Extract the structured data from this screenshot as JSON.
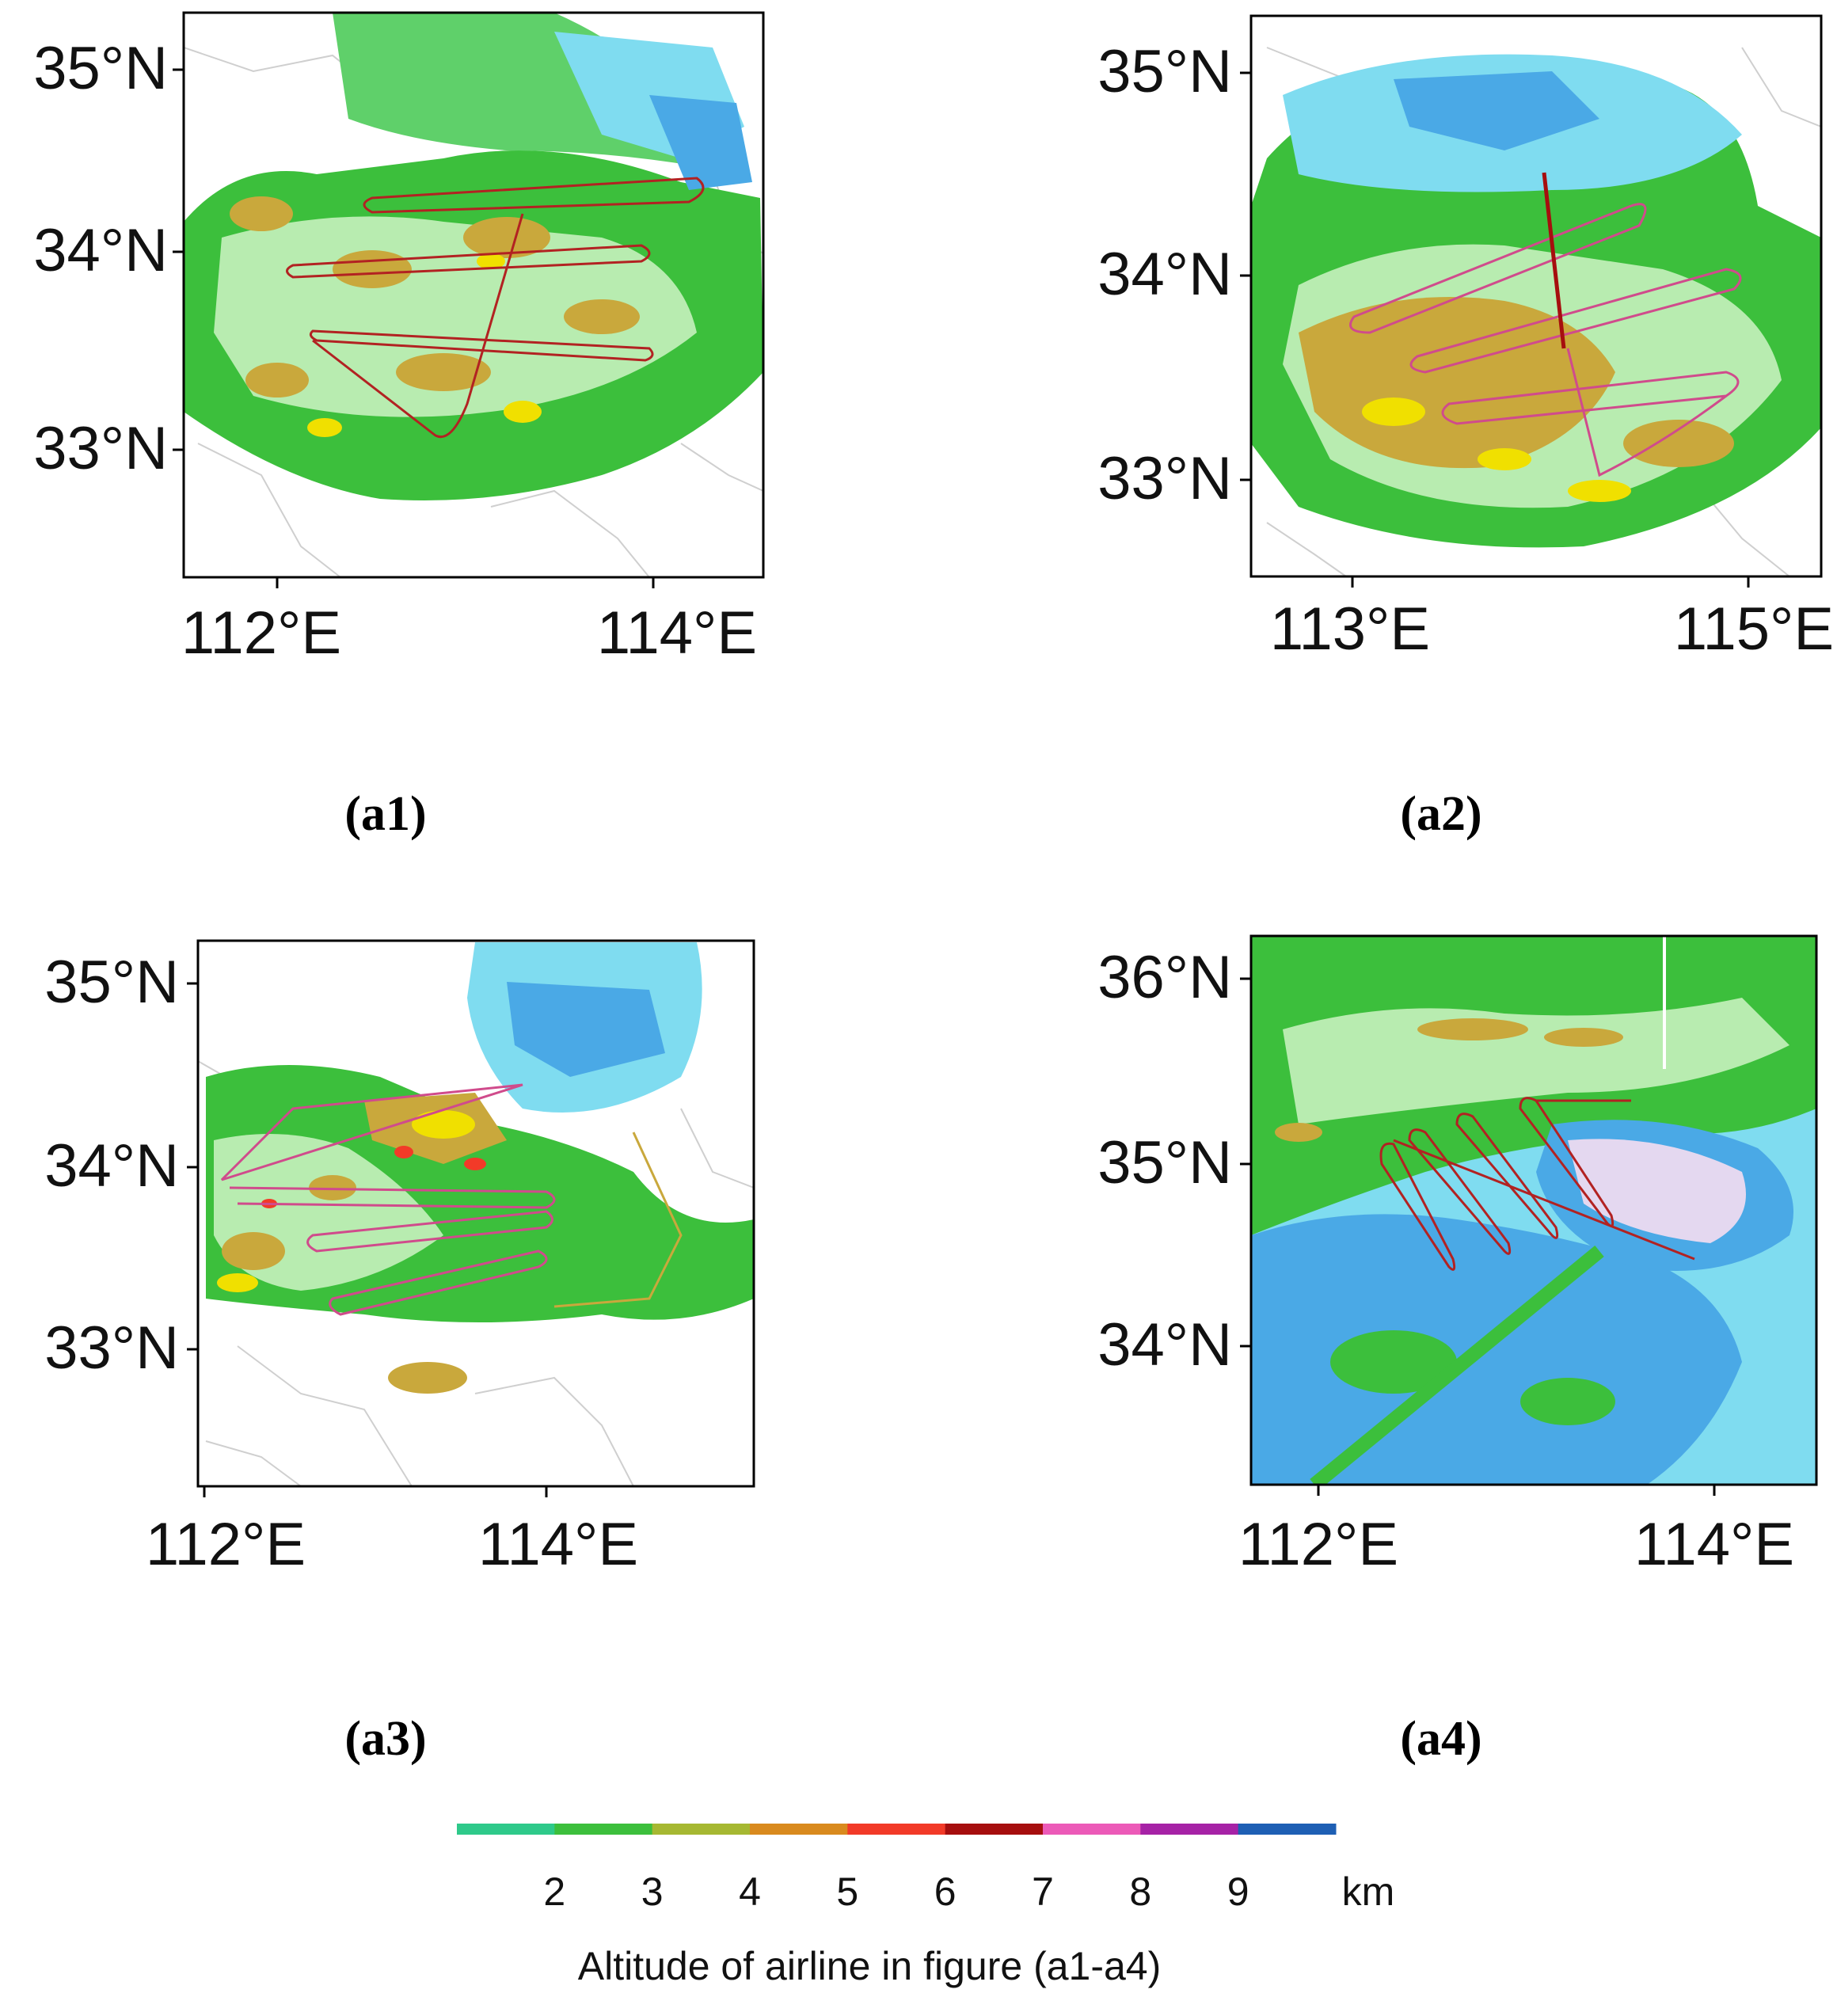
{
  "panels": [
    {
      "id": "a1",
      "label": "(a1)",
      "lat_ticks": [
        "35°N",
        "34°N",
        "33°N"
      ],
      "lon_ticks": [
        "112°E",
        "114°E"
      ]
    },
    {
      "id": "a2",
      "label": "(a2)",
      "lat_ticks": [
        "35°N",
        "34°N",
        "33°N"
      ],
      "lon_ticks": [
        "113°E",
        "115°E"
      ]
    },
    {
      "id": "a3",
      "label": "(a3)",
      "lat_ticks": [
        "35°N",
        "34°N",
        "33°N"
      ],
      "lon_ticks": [
        "112°E",
        "114°E"
      ]
    },
    {
      "id": "a4",
      "label": "(a4)",
      "lat_ticks": [
        "36°N",
        "35°N",
        "34°N"
      ],
      "lon_ticks": [
        "112°E",
        "114°E"
      ]
    }
  ],
  "colorbar": {
    "colors": [
      "#2ec98a",
      "#3cbf3c",
      "#a6b832",
      "#d98a1e",
      "#f23a28",
      "#a60e0e",
      "#ec5ab8",
      "#a622a6",
      "#1e5fb4"
    ],
    "tick_labels": [
      "2",
      "3",
      "4",
      "5",
      "6",
      "7",
      "8",
      "9"
    ],
    "unit": "km",
    "title": "Altitude of airline in figure (a1-a4)"
  }
}
